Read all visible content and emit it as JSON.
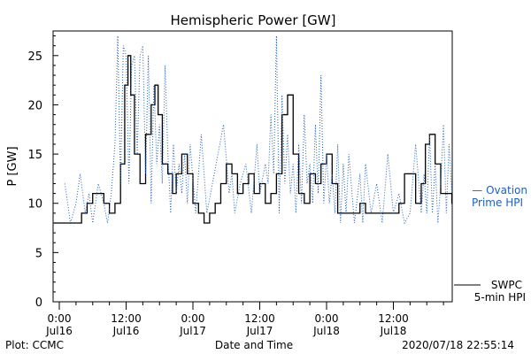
{
  "chart_data": {
    "type": "line",
    "title": "Hemispheric Power [GW]",
    "ylabel": "P [GW]",
    "xlabel": "Date and Time",
    "ylim": [
      0,
      27.5
    ],
    "xlim": [
      "2020-07-16 00:00",
      "2020-07-18 22:56"
    ],
    "grid": false,
    "y_ticks": [
      0,
      5,
      10,
      15,
      20,
      25
    ],
    "x_ticks": [
      {
        "t": "2020-07-16 00:00",
        "time": "0:00",
        "day": "Jul16"
      },
      {
        "t": "2020-07-16 12:00",
        "time": "12:00",
        "day": "Jul16"
      },
      {
        "t": "2020-07-17 00:00",
        "time": "0:00",
        "day": "Jul17"
      },
      {
        "t": "2020-07-17 12:00",
        "time": "12:00",
        "day": "Jul17"
      },
      {
        "t": "2020-07-18 00:00",
        "time": "0:00",
        "day": "Jul18"
      },
      {
        "t": "2020-07-18 12:00",
        "time": "12:00",
        "day": "Jul18"
      }
    ],
    "series": [
      {
        "name": "SWPC 5-min HPI",
        "color": "#000000",
        "style": "solid",
        "x": [
          "2020-07-16 00:00",
          "2020-07-16 03:00",
          "2020-07-16 04:00",
          "2020-07-16 05:00",
          "2020-07-16 06:00",
          "2020-07-16 07:00",
          "2020-07-16 08:00",
          "2020-07-16 09:00",
          "2020-07-16 10:00",
          "2020-07-16 11:00",
          "2020-07-16 11:45",
          "2020-07-16 12:20",
          "2020-07-16 12:50",
          "2020-07-16 13:30",
          "2020-07-16 14:30",
          "2020-07-16 15:30",
          "2020-07-16 16:30",
          "2020-07-16 17:10",
          "2020-07-16 17:45",
          "2020-07-16 18:30",
          "2020-07-16 19:30",
          "2020-07-16 20:20",
          "2020-07-16 21:00",
          "2020-07-16 22:00",
          "2020-07-16 23:00",
          "2020-07-17 00:00",
          "2020-07-17 01:00",
          "2020-07-17 02:00",
          "2020-07-17 03:00",
          "2020-07-17 04:00",
          "2020-07-17 05:00",
          "2020-07-17 06:00",
          "2020-07-17 07:00",
          "2020-07-17 08:00",
          "2020-07-17 09:00",
          "2020-07-17 10:00",
          "2020-07-17 11:00",
          "2020-07-17 12:00",
          "2020-07-17 13:00",
          "2020-07-17 14:00",
          "2020-07-17 15:00",
          "2020-07-17 16:00",
          "2020-07-17 17:00",
          "2020-07-17 18:00",
          "2020-07-17 19:00",
          "2020-07-17 20:00",
          "2020-07-17 21:00",
          "2020-07-17 22:00",
          "2020-07-17 23:00",
          "2020-07-18 00:00",
          "2020-07-18 01:00",
          "2020-07-18 02:00",
          "2020-07-18 03:00",
          "2020-07-18 04:00",
          "2020-07-18 05:00",
          "2020-07-18 06:00",
          "2020-07-18 07:00",
          "2020-07-18 08:00",
          "2020-07-18 10:00",
          "2020-07-18 12:00",
          "2020-07-18 13:00",
          "2020-07-18 14:00",
          "2020-07-18 15:00",
          "2020-07-18 16:00",
          "2020-07-18 17:00",
          "2020-07-18 17:45",
          "2020-07-18 18:30",
          "2020-07-18 19:30",
          "2020-07-18 20:30",
          "2020-07-18 21:30",
          "2020-07-18 22:30"
        ],
        "y": [
          8,
          8,
          9,
          10,
          11,
          11,
          10,
          9,
          10,
          14,
          22,
          25,
          21,
          15,
          12,
          17,
          20,
          22,
          19,
          14,
          13,
          11,
          13,
          15,
          13,
          10,
          9,
          8,
          9,
          10,
          12,
          14,
          13,
          11,
          12,
          13,
          11,
          12,
          10,
          11,
          13,
          19,
          21,
          15,
          11,
          10,
          13,
          12,
          14,
          15,
          12,
          9,
          9,
          9,
          9,
          10,
          9,
          9,
          9,
          9,
          10,
          13,
          13,
          10,
          12,
          16,
          17,
          14,
          11,
          11,
          10
        ]
      },
      {
        "name": "Ovation Prime HPI",
        "color": "#2060c0",
        "style": "dotted",
        "x": [
          "2020-07-16 01:00",
          "2020-07-16 02:00",
          "2020-07-16 03:00",
          "2020-07-16 03:45",
          "2020-07-16 04:40",
          "2020-07-16 05:20",
          "2020-07-16 06:00",
          "2020-07-16 07:00",
          "2020-07-16 08:00",
          "2020-07-16 08:40",
          "2020-07-16 09:20",
          "2020-07-16 10:00",
          "2020-07-16 10:30",
          "2020-07-16 11:00",
          "2020-07-16 11:30",
          "2020-07-16 12:00",
          "2020-07-16 12:30",
          "2020-07-16 13:00",
          "2020-07-16 13:30",
          "2020-07-16 14:00",
          "2020-07-16 14:30",
          "2020-07-16 15:00",
          "2020-07-16 15:30",
          "2020-07-16 16:00",
          "2020-07-16 16:30",
          "2020-07-16 17:00",
          "2020-07-16 17:30",
          "2020-07-16 18:00",
          "2020-07-16 18:30",
          "2020-07-16 19:00",
          "2020-07-16 19:30",
          "2020-07-16 20:00",
          "2020-07-16 20:30",
          "2020-07-16 21:00",
          "2020-07-16 21:30",
          "2020-07-16 22:00",
          "2020-07-16 22:30",
          "2020-07-16 23:00",
          "2020-07-16 23:30",
          "2020-07-17 00:30",
          "2020-07-17 01:30",
          "2020-07-17 02:30",
          "2020-07-17 03:30",
          "2020-07-17 04:30",
          "2020-07-17 05:30",
          "2020-07-17 06:30",
          "2020-07-17 07:00",
          "2020-07-17 07:30",
          "2020-07-17 08:30",
          "2020-07-17 09:30",
          "2020-07-17 10:30",
          "2020-07-17 11:30",
          "2020-07-17 12:00",
          "2020-07-17 13:00",
          "2020-07-17 13:30",
          "2020-07-17 14:00",
          "2020-07-17 14:30",
          "2020-07-17 15:00",
          "2020-07-17 15:30",
          "2020-07-17 16:00",
          "2020-07-17 16:30",
          "2020-07-17 17:00",
          "2020-07-17 17:30",
          "2020-07-17 18:00",
          "2020-07-17 18:30",
          "2020-07-17 19:00",
          "2020-07-17 19:30",
          "2020-07-17 20:00",
          "2020-07-17 20:30",
          "2020-07-17 21:00",
          "2020-07-17 21:30",
          "2020-07-17 22:00",
          "2020-07-17 22:30",
          "2020-07-17 23:00",
          "2020-07-17 23:30",
          "2020-07-18 00:00",
          "2020-07-18 00:30",
          "2020-07-18 01:00",
          "2020-07-18 01:30",
          "2020-07-18 02:00",
          "2020-07-18 02:30",
          "2020-07-18 03:00",
          "2020-07-18 03:30",
          "2020-07-18 04:00",
          "2020-07-18 05:00",
          "2020-07-18 06:00",
          "2020-07-18 06:30",
          "2020-07-18 07:00",
          "2020-07-18 08:00",
          "2020-07-18 09:00",
          "2020-07-18 10:00",
          "2020-07-18 11:00",
          "2020-07-18 12:00",
          "2020-07-18 13:00",
          "2020-07-18 14:00",
          "2020-07-18 15:00",
          "2020-07-18 16:00",
          "2020-07-18 17:00",
          "2020-07-18 17:30",
          "2020-07-18 18:00",
          "2020-07-18 18:30",
          "2020-07-18 19:00",
          "2020-07-18 19:30",
          "2020-07-18 20:00",
          "2020-07-18 20:30",
          "2020-07-18 21:00",
          "2020-07-18 21:30",
          "2020-07-18 22:00",
          "2020-07-18 22:30"
        ],
        "y": [
          12,
          8,
          10,
          13,
          9,
          11,
          8,
          12,
          10,
          8,
          11,
          16,
          27,
          12,
          26,
          25,
          12,
          24,
          25,
          15,
          25,
          26,
          13,
          25,
          10,
          22,
          14,
          18,
          12,
          24,
          15,
          9,
          16,
          11,
          14,
          11,
          15,
          10,
          16,
          9,
          17,
          9,
          12,
          15,
          18,
          11,
          13,
          9,
          12,
          14,
          9,
          16,
          11,
          14,
          12,
          19,
          13,
          27,
          9,
          21,
          12,
          17,
          11,
          14,
          9,
          16,
          10,
          19,
          12,
          14,
          10,
          18,
          11,
          23,
          10,
          15,
          10,
          13,
          9,
          16,
          8,
          14,
          9,
          15,
          8,
          13,
          8,
          14,
          9,
          12,
          8,
          15,
          9,
          11,
          8,
          9,
          16,
          9,
          13,
          9,
          17,
          9,
          14,
          8,
          12,
          18,
          9,
          16,
          11
        ]
      }
    ]
  },
  "labels": {
    "title": "Hemispheric Power [GW]",
    "ylabel": "P [GW]",
    "xlabel": "Date and Time",
    "plot_credit": "Plot: CCMC",
    "timestamp": "2020/07/18 22:55:14",
    "legend_ovation_line1": "— Ovation",
    "legend_ovation_line2": "Prime HPI",
    "legend_swpc_line1": "SWPC",
    "legend_swpc_line2": "5-min HPI"
  },
  "colors": {
    "swpc": "#000000",
    "ovation": "#2060c0"
  }
}
